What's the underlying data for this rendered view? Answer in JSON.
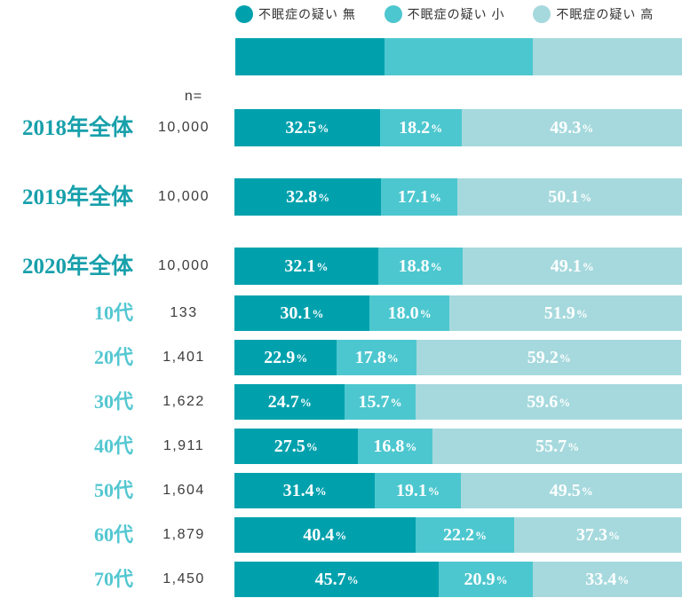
{
  "chart_data": {
    "type": "bar",
    "subtype": "horizontal-stacked-100-percent",
    "title": "",
    "unit": "%",
    "xlim": [
      0,
      100
    ],
    "grid": false,
    "legend_position": "top",
    "n_header": "n=",
    "percent_suffix": "%",
    "legend": [
      {
        "label": "不眠症の疑い 無",
        "color": "#00a1ad"
      },
      {
        "label": "不眠症の疑い 小",
        "color": "#4dc7cf"
      },
      {
        "label": "不眠症の疑い 高",
        "color": "#a6d9dd"
      }
    ],
    "colors": [
      "#00a1ad",
      "#4dc7cf",
      "#a6d9dd"
    ],
    "scale_bar_segments": [
      33.4,
      33.3,
      33.3
    ],
    "categories": [
      "2018年全体",
      "2019年全体",
      "2020年全体",
      "10代",
      "20代",
      "30代",
      "40代",
      "50代",
      "60代",
      "70代"
    ],
    "rows": [
      {
        "label": "2018年全体",
        "group": "year",
        "n": "10,000",
        "values": [
          32.5,
          18.2,
          49.3
        ],
        "labels": [
          "32.5",
          "18.2",
          "49.3"
        ]
      },
      {
        "label": "2019年全体",
        "group": "year",
        "n": "10,000",
        "values": [
          32.8,
          17.1,
          50.1
        ],
        "labels": [
          "32.8",
          "17.1",
          "50.1"
        ]
      },
      {
        "label": "2020年全体",
        "group": "year-last",
        "n": "10,000",
        "values": [
          32.1,
          18.8,
          49.1
        ],
        "labels": [
          "32.1",
          "18.8",
          "49.1"
        ]
      },
      {
        "label": "10代",
        "group": "age",
        "n": "133",
        "values": [
          30.1,
          18.0,
          51.9
        ],
        "labels": [
          "30.1",
          "18.0",
          "51.9"
        ]
      },
      {
        "label": "20代",
        "group": "age",
        "n": "1,401",
        "values": [
          22.9,
          17.8,
          59.2
        ],
        "labels": [
          "22.9",
          "17.8",
          "59.2"
        ]
      },
      {
        "label": "30代",
        "group": "age",
        "n": "1,622",
        "values": [
          24.7,
          15.7,
          59.6
        ],
        "labels": [
          "24.7",
          "15.7",
          "59.6"
        ]
      },
      {
        "label": "40代",
        "group": "age",
        "n": "1,911",
        "values": [
          27.5,
          16.8,
          55.7
        ],
        "labels": [
          "27.5",
          "16.8",
          "55.7"
        ]
      },
      {
        "label": "50代",
        "group": "age",
        "n": "1,604",
        "values": [
          31.4,
          19.1,
          49.5
        ],
        "labels": [
          "31.4",
          "19.1",
          "49.5"
        ]
      },
      {
        "label": "60代",
        "group": "age",
        "n": "1,879",
        "values": [
          40.4,
          22.2,
          37.3
        ],
        "labels": [
          "40.4",
          "22.2",
          "37.3"
        ]
      },
      {
        "label": "70代",
        "group": "age",
        "n": "1,450",
        "values": [
          45.7,
          20.9,
          33.4
        ],
        "labels": [
          "45.7",
          "20.9",
          "33.4"
        ]
      }
    ]
  }
}
